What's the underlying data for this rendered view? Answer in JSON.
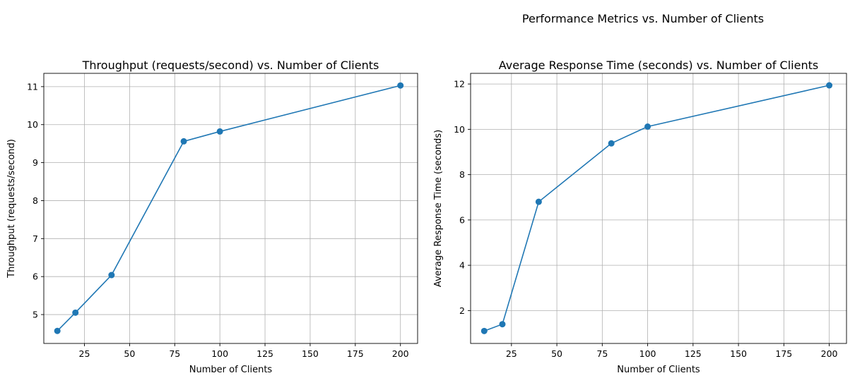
{
  "figure": {
    "suptitle": "Performance Metrics vs. Number of Clients",
    "colors": {
      "series": "#1f77b4",
      "grid": "#b0b0b0",
      "axes": "#000000"
    }
  },
  "chart_data": [
    {
      "type": "line",
      "title": "Throughput (requests/second) vs. Number of Clients",
      "xlabel": "Number of Clients",
      "ylabel": "Throughput (requests/second)",
      "x": [
        10,
        20,
        40,
        80,
        100,
        200
      ],
      "series": [
        {
          "values": [
            4.57,
            5.05,
            6.04,
            9.56,
            9.82,
            11.03
          ]
        }
      ],
      "xlim": [
        2.5,
        209.5
      ],
      "ylim": [
        4.24,
        11.35
      ],
      "xticks": [
        25,
        50,
        75,
        100,
        125,
        150,
        175,
        200
      ],
      "yticks": [
        5,
        6,
        7,
        8,
        9,
        10,
        11
      ],
      "grid": true,
      "marker": "circle"
    },
    {
      "type": "line",
      "title": "Average Response Time (seconds) vs. Number of Clients",
      "xlabel": "Number of Clients",
      "ylabel": "Average Response Time (seconds)",
      "x": [
        10,
        20,
        40,
        80,
        100,
        200
      ],
      "series": [
        {
          "values": [
            1.1,
            1.4,
            6.8,
            9.38,
            10.12,
            11.94
          ]
        }
      ],
      "xlim": [
        2.5,
        209.5
      ],
      "ylim": [
        0.55,
        12.47
      ],
      "xticks": [
        25,
        50,
        75,
        100,
        125,
        150,
        175,
        200
      ],
      "yticks": [
        2,
        4,
        6,
        8,
        10,
        12
      ],
      "grid": true,
      "marker": "circle"
    }
  ]
}
